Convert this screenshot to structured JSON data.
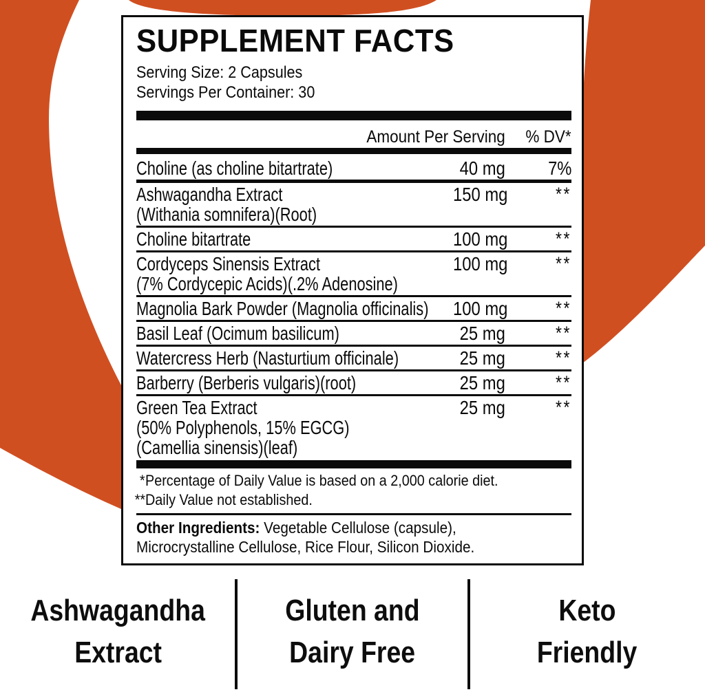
{
  "panel": {
    "title": "SUPPLEMENT FACTS",
    "serving_size": "Serving Size: 2 Capsules",
    "servings_per_container": "Servings Per Container: 30",
    "columns": {
      "amount": "Amount Per Serving",
      "dv": "% DV*"
    },
    "rows": [
      {
        "lines": [
          "Choline (as choline bitartrate)"
        ],
        "amount": "40 mg",
        "dv": "7%"
      },
      {
        "lines": [
          "Ashwagandha Extract",
          "(Withania somnifera)(Root)"
        ],
        "amount": "150 mg",
        "dv": "**"
      },
      {
        "lines": [
          "Choline bitartrate"
        ],
        "amount": "100 mg",
        "dv": "**"
      },
      {
        "lines": [
          "Cordyceps Sinensis Extract",
          "(7% Cordycepic Acids)(.2% Adenosine)"
        ],
        "amount": "100 mg",
        "dv": "**"
      },
      {
        "lines": [
          "Magnolia Bark Powder (Magnolia officinalis)"
        ],
        "amount": "100 mg",
        "dv": "**"
      },
      {
        "lines": [
          "Basil Leaf (Ocimum basilicum)"
        ],
        "amount": "25 mg",
        "dv": "**"
      },
      {
        "lines": [
          "Watercress Herb (Nasturtium officinale)"
        ],
        "amount": "25 mg",
        "dv": "**"
      },
      {
        "lines": [
          "Barberry (Berberis vulgaris)(root)"
        ],
        "amount": "25 mg",
        "dv": "**"
      },
      {
        "lines": [
          "Green Tea Extract",
          "(50% Polyphenols, 15% EGCG)",
          "(Camellia sinensis)(leaf)"
        ],
        "amount": "25 mg",
        "dv": "**"
      }
    ],
    "footnotes": [
      {
        "marker": "*",
        "text": "Percentage of Daily Value is based on a 2,000 calorie diet."
      },
      {
        "marker": "**",
        "text": "Daily Value not established."
      }
    ],
    "other_ingredients": {
      "label": "Other Ingredients:",
      "line1_rest": " Vegetable Cellulose (capsule),",
      "line2": "Microcrystalline Cellulose, Rice Flour, Silicon Dioxide."
    }
  },
  "badges": [
    {
      "line1": "Ashwagandha",
      "line2": "Extract"
    },
    {
      "line1": "Gluten and",
      "line2": "Dairy Free"
    },
    {
      "line1": "Keto",
      "line2": "Friendly"
    }
  ],
  "colors": {
    "accent_orange": "#D04F21",
    "rule_black": "#0A0A0A",
    "background": "#FFFFFF"
  }
}
